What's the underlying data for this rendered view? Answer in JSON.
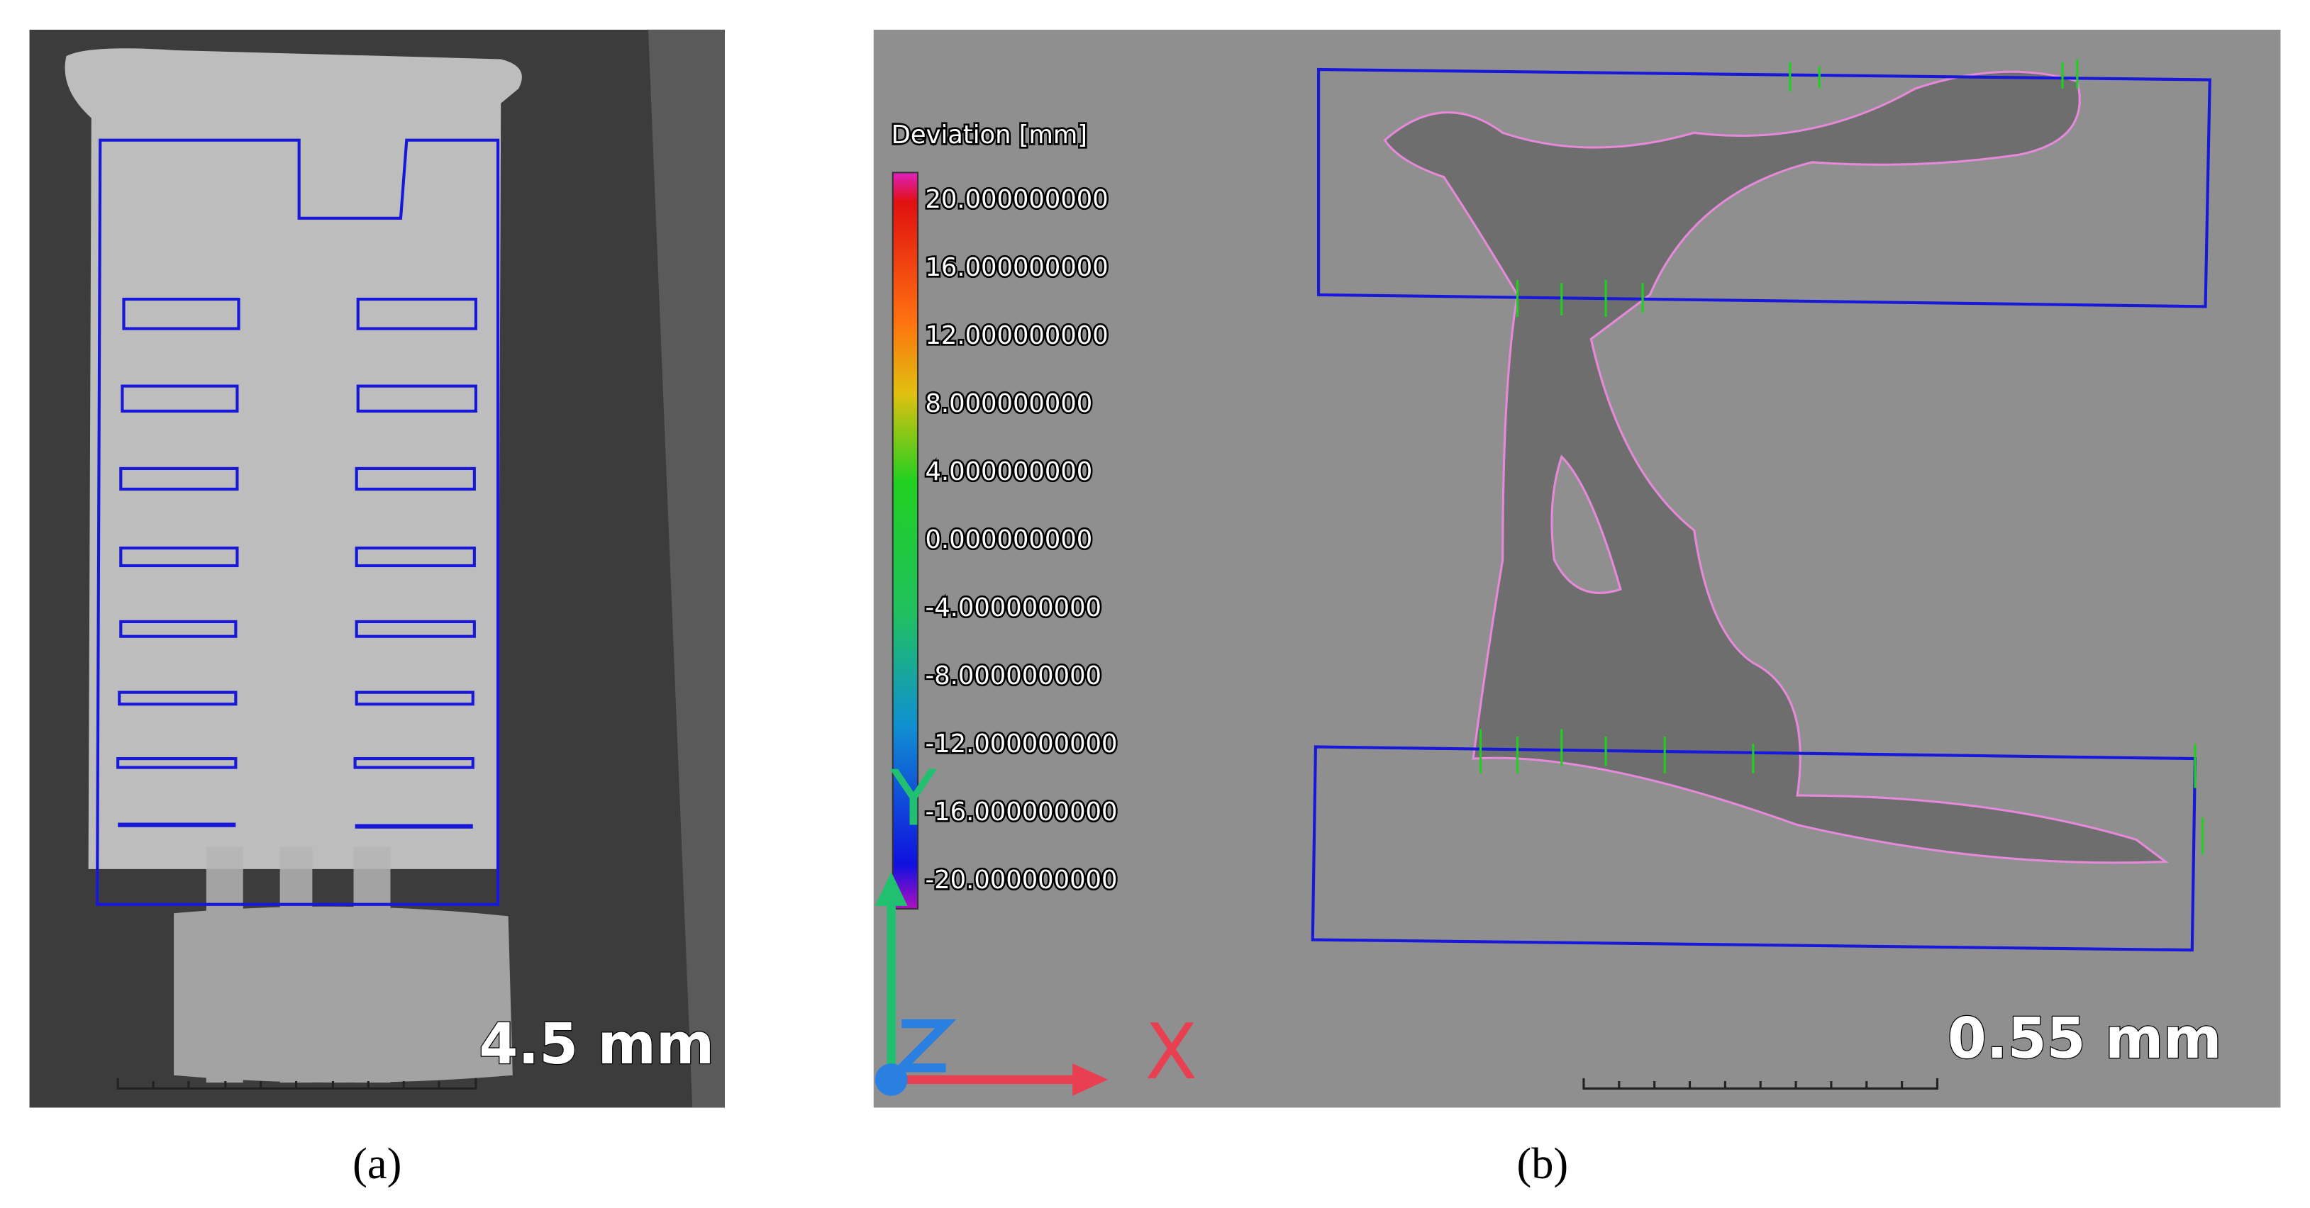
{
  "panel_a": {
    "scale_label": "4.5 mm",
    "caption": "(a)"
  },
  "panel_b": {
    "legend_title": "Deviation [mm]",
    "legend_labels": [
      "20.000000000",
      "16.000000000",
      "12.000000000",
      "8.000000000",
      "4.000000000",
      "0.000000000",
      "-4.000000000",
      "-8.000000000",
      "-12.000000000",
      "-16.000000000",
      "-20.000000000"
    ],
    "axis_x": "X",
    "axis_y": "Y",
    "axis_z": "Z",
    "scale_label": "0.55 mm",
    "caption": "(b)"
  }
}
